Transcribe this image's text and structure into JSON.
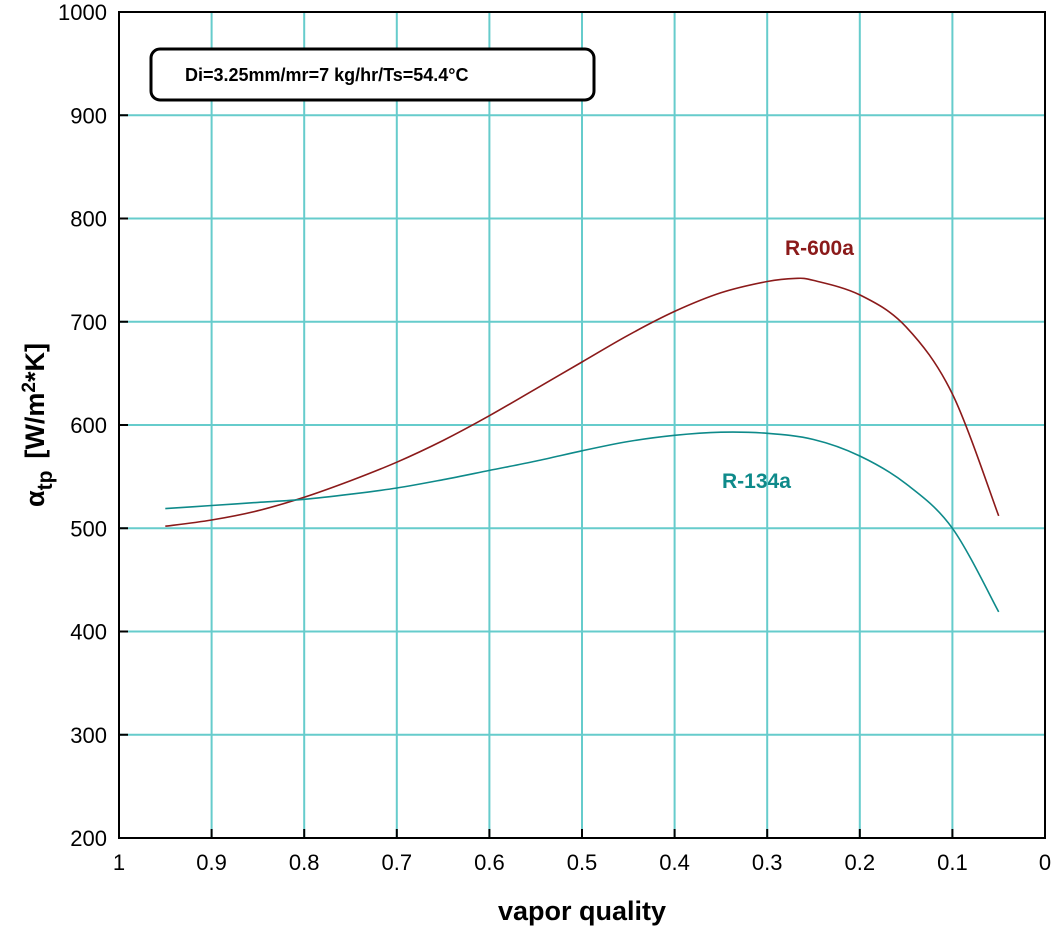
{
  "chart_data": {
    "type": "line",
    "title": "",
    "xlabel": "vapor quality",
    "ylabel": {
      "symbol": "α",
      "subscript": "tp",
      "unit_prefix": "[W/m",
      "unit_exp": "2",
      "unit_suffix": "*K]"
    },
    "xlim": [
      1,
      0
    ],
    "ylim": [
      200,
      1000
    ],
    "x_reversed": true,
    "grid": true,
    "grid_color": "#66cccc",
    "x_ticks": [
      "1",
      "0.9",
      "0.8",
      "0.7",
      "0.6",
      "0.5",
      "0.4",
      "0.3",
      "0.2",
      "0.1",
      "0"
    ],
    "y_ticks": [
      "200",
      "300",
      "400",
      "500",
      "600",
      "700",
      "800",
      "900",
      "1000"
    ],
    "annotation": "Di=3.25mm/mr=7 kg/hr/Ts=54.4°C",
    "series": [
      {
        "name": "R-600a",
        "color": "#8b1a1a",
        "points": [
          [
            0.95,
            502
          ],
          [
            0.9,
            508
          ],
          [
            0.85,
            517
          ],
          [
            0.8,
            530
          ],
          [
            0.75,
            546
          ],
          [
            0.7,
            564
          ],
          [
            0.65,
            585
          ],
          [
            0.6,
            609
          ],
          [
            0.55,
            635
          ],
          [
            0.5,
            661
          ],
          [
            0.45,
            687
          ],
          [
            0.4,
            710
          ],
          [
            0.35,
            728
          ],
          [
            0.3,
            739
          ],
          [
            0.27,
            742
          ],
          [
            0.25,
            740
          ],
          [
            0.2,
            726
          ],
          [
            0.15,
            695
          ],
          [
            0.1,
            630
          ],
          [
            0.05,
            512
          ]
        ]
      },
      {
        "name": "R-134a",
        "color": "#0e8a8a",
        "points": [
          [
            0.95,
            519
          ],
          [
            0.9,
            522
          ],
          [
            0.85,
            525
          ],
          [
            0.8,
            528
          ],
          [
            0.75,
            533
          ],
          [
            0.7,
            539
          ],
          [
            0.65,
            547
          ],
          [
            0.6,
            556
          ],
          [
            0.55,
            565
          ],
          [
            0.5,
            575
          ],
          [
            0.45,
            584
          ],
          [
            0.4,
            590
          ],
          [
            0.35,
            593
          ],
          [
            0.3,
            592
          ],
          [
            0.25,
            586
          ],
          [
            0.2,
            570
          ],
          [
            0.15,
            543
          ],
          [
            0.1,
            500
          ],
          [
            0.05,
            419
          ]
        ]
      }
    ]
  }
}
